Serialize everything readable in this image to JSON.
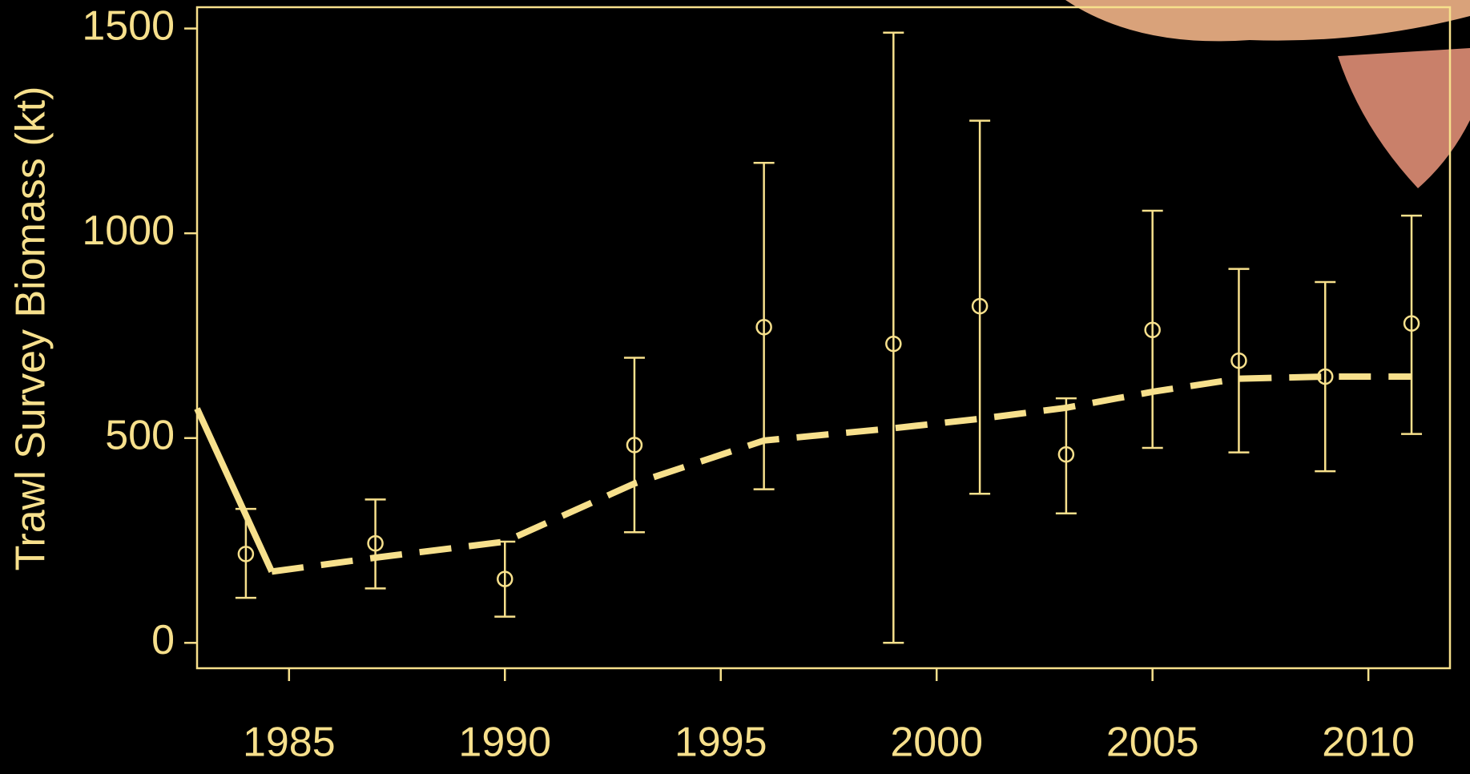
{
  "chart_data": {
    "type": "scatter",
    "y_label": "Trawl Survey Biomass (kt)",
    "color": "#f7e08c",
    "background": "#000000",
    "xlim": [
      1982.87,
      2011.89
    ],
    "xticks": [
      1985,
      1990,
      1995,
      2000,
      2005,
      2010
    ],
    "ylim": [
      -62,
      1552
    ],
    "yticks": [
      0,
      500,
      1000,
      1500
    ],
    "points": {
      "x": [
        1984,
        1987,
        1990,
        1993,
        1996,
        1999,
        2001,
        2003,
        2005,
        2007,
        2009,
        2011
      ],
      "values": [
        217,
        243,
        156,
        483,
        771,
        730,
        822,
        460,
        764,
        689,
        650,
        780
      ],
      "lower": [
        110,
        133,
        64,
        270,
        375,
        0,
        364,
        316,
        476,
        465,
        419,
        510
      ],
      "upper": [
        327,
        350,
        247,
        696,
        1172,
        1490,
        1275,
        597,
        1055,
        913,
        881,
        1043
      ]
    },
    "lines": [
      {
        "style": "solid",
        "x": [
          1982.87,
          1984.6
        ],
        "values": [
          572,
          174
        ]
      },
      {
        "style": "dashed",
        "x": [
          1984.6,
          1987,
          1990,
          1993,
          1996,
          1999,
          2001,
          2003,
          2005,
          2007,
          2009,
          2011
        ],
        "values": [
          174,
          208,
          247,
          389,
          494,
          524,
          547,
          574,
          613,
          645,
          650,
          650
        ]
      }
    ]
  }
}
